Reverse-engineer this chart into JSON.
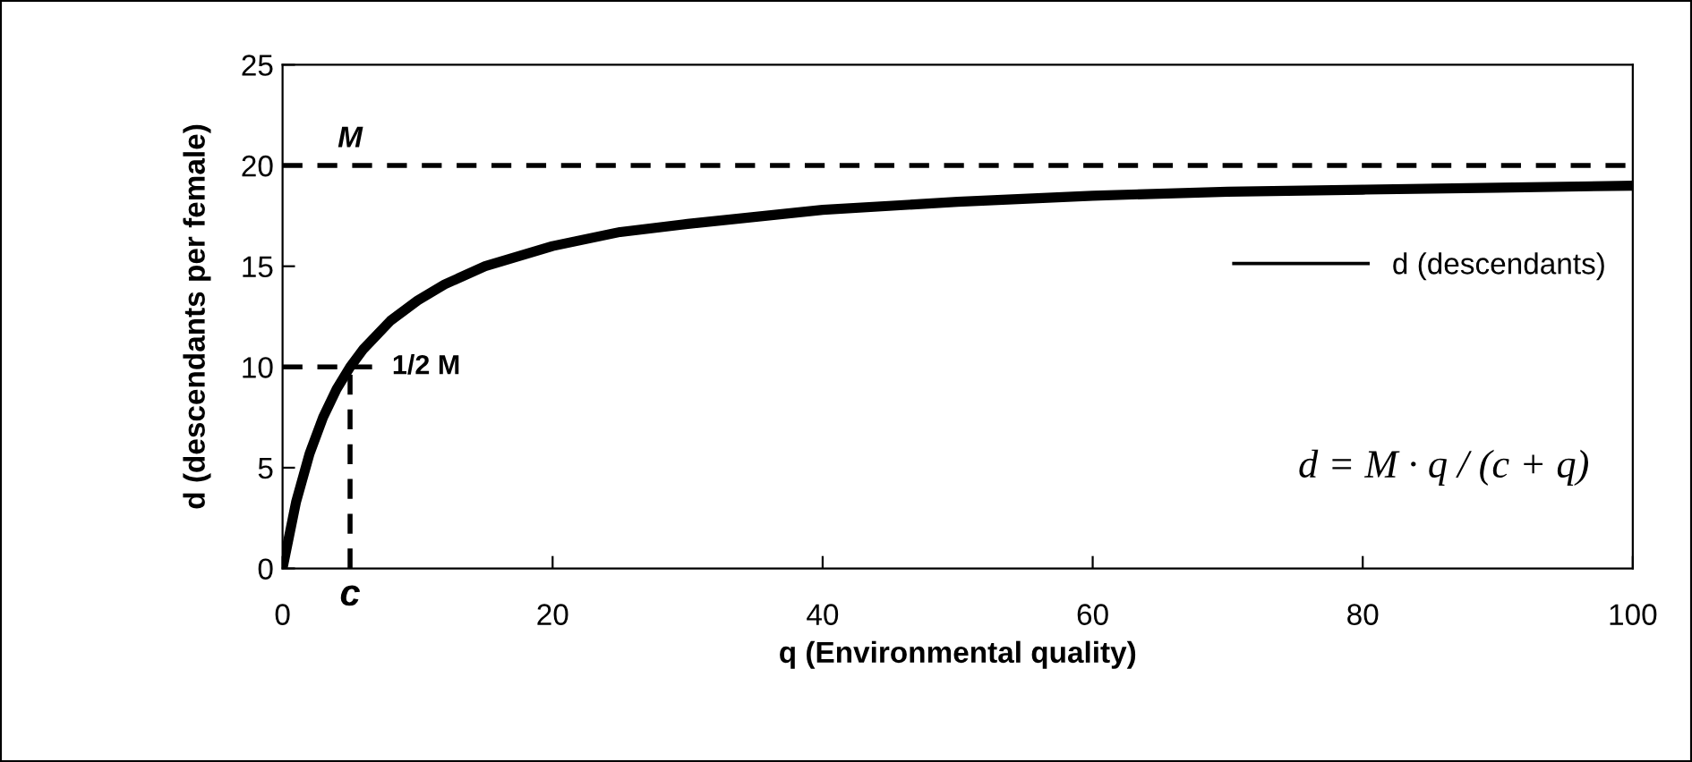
{
  "chart_data": {
    "type": "line",
    "xlabel": "q (Environmental quality)",
    "ylabel": "d (descendants per female)",
    "xlim": [
      0,
      100
    ],
    "xticks": [
      0,
      20,
      40,
      60,
      80,
      100
    ],
    "ylim": [
      0,
      25
    ],
    "yticks": [
      0,
      5,
      10,
      15,
      20,
      25
    ],
    "grid": false,
    "legend": "right",
    "marker": "none",
    "series": [
      {
        "name": "d (descendants)",
        "color": "#000000",
        "line_style": "solid",
        "x": [
          0,
          1,
          2,
          3,
          4,
          5,
          6,
          8,
          10,
          12,
          15,
          20,
          25,
          30,
          40,
          50,
          60,
          70,
          80,
          90,
          100
        ],
        "values": [
          0,
          3.3,
          5.7,
          7.5,
          8.9,
          10,
          10.9,
          12.3,
          13.3,
          14.1,
          15,
          16,
          16.7,
          17.1,
          17.8,
          18.2,
          18.5,
          18.7,
          18.8,
          18.9,
          19
        ]
      },
      {
        "color": "#000000",
        "line_style": "dashed",
        "x": [
          0,
          7
        ],
        "values": [
          10,
          10
        ]
      },
      {
        "color": "#000000",
        "line_style": "dashed",
        "x": [
          5,
          5
        ],
        "values": [
          0,
          10
        ]
      }
    ],
    "ref_lines": [
      {
        "axis": "y",
        "value": 20,
        "label": "M",
        "color": "#000000",
        "line_style": "dashed"
      }
    ],
    "annotations": [
      {
        "text": "1/2 M",
        "x": 7,
        "y": 10
      },
      {
        "text": "c",
        "x": 5,
        "y": 0
      },
      "d = M · q / (c + q)"
    ]
  }
}
